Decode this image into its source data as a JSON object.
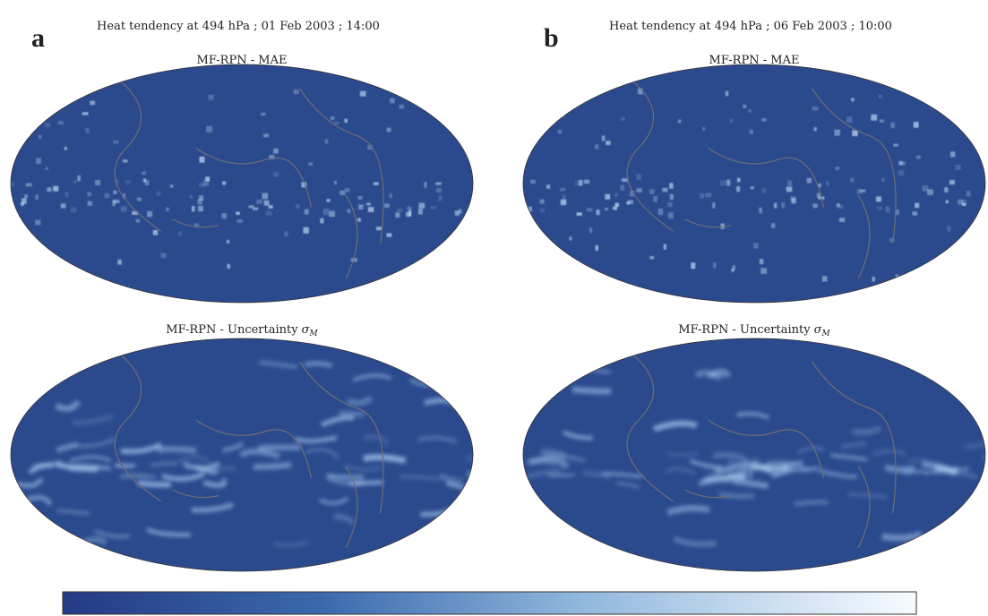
{
  "panels": [
    {
      "label": "a",
      "title": "Heat tendency at 494 hPa ; 01 Feb 2003 ; 14:00",
      "maps": [
        {
          "title": "MF-RPN - MAE"
        },
        {
          "title": "MF-RPN - Uncertainty",
          "symbol": "σ",
          "subscript": "M"
        }
      ]
    },
    {
      "label": "b",
      "title": "Heat tendency at 494 hPa ; 06 Feb 2003 ; 10:00",
      "maps": [
        {
          "title": "MF-RPN - MAE"
        },
        {
          "title": "MF-RPN - Uncertainty",
          "symbol": "σ",
          "subscript": "M"
        }
      ]
    }
  ]
}
